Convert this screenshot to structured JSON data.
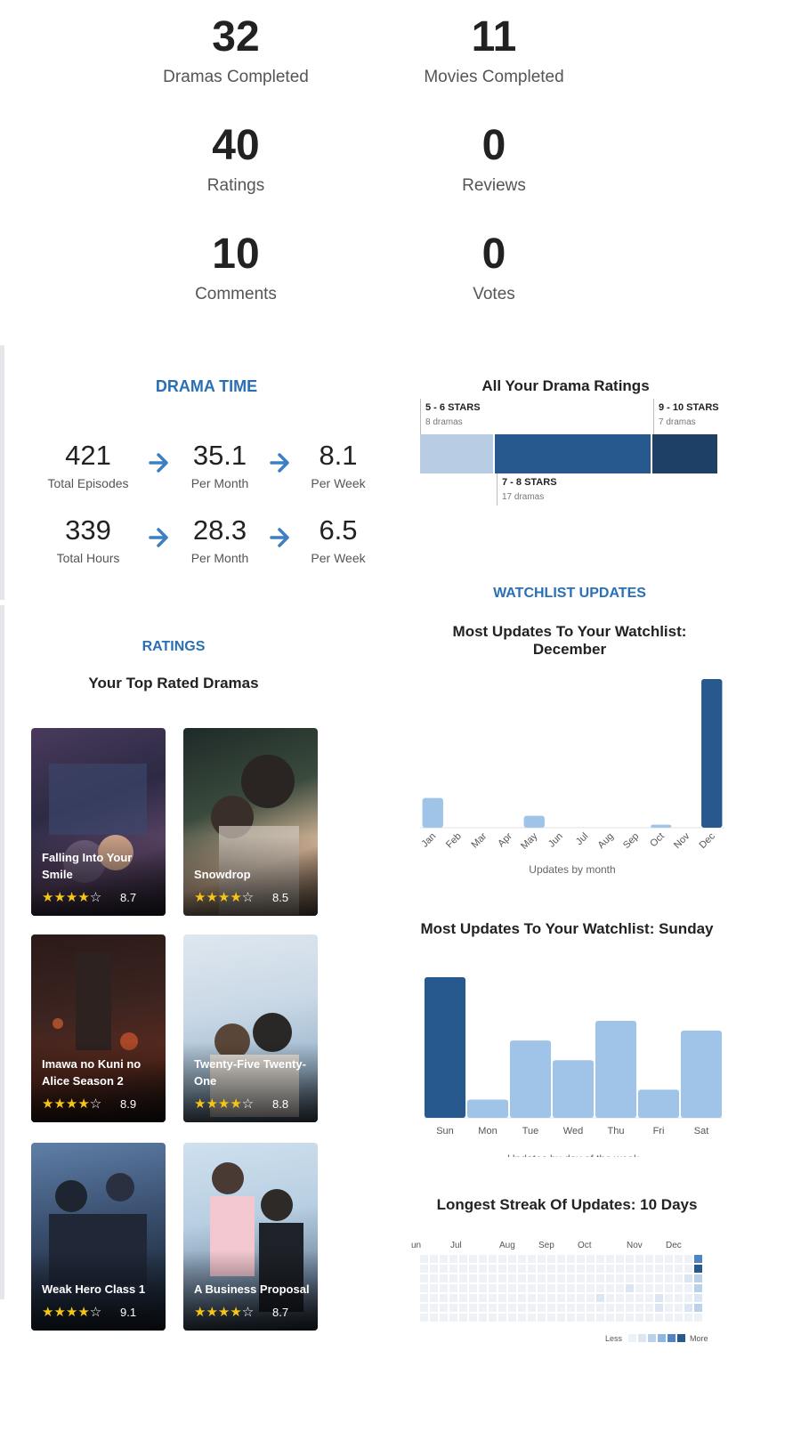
{
  "stats": [
    {
      "value": "32",
      "label": "Dramas Completed"
    },
    {
      "value": "11",
      "label": "Movies Completed"
    },
    {
      "value": "40",
      "label": "Ratings"
    },
    {
      "value": "0",
      "label": "Reviews"
    },
    {
      "value": "10",
      "label": "Comments"
    },
    {
      "value": "0",
      "label": "Votes"
    }
  ],
  "drama_time": {
    "title": "DRAMA TIME",
    "rows": [
      [
        {
          "value": "421",
          "label": "Total Episodes"
        },
        {
          "value": "35.1",
          "label": "Per Month"
        },
        {
          "value": "8.1",
          "label": "Per Week"
        }
      ],
      [
        {
          "value": "339",
          "label": "Total Hours"
        },
        {
          "value": "28.3",
          "label": "Per Month"
        },
        {
          "value": "6.5",
          "label": "Per Week"
        }
      ]
    ],
    "arrow_icon": "arrow-right-icon",
    "arrow_color": "#3d7fc1"
  },
  "rating_distribution": {
    "title": "All Your Drama Ratings",
    "segments": [
      {
        "label": "5 - 6 STARS",
        "count": "8 dramas",
        "value": 8,
        "color": "#b8cce4"
      },
      {
        "label": "7 - 8 STARS",
        "count": "17 dramas",
        "value": 17,
        "color": "#27598f"
      },
      {
        "label": "9 - 10 STARS",
        "count": "7 dramas",
        "value": 7,
        "color": "#1e3f66"
      }
    ]
  },
  "ratings": {
    "title": "RATINGS",
    "subtitle": "Your Top Rated Dramas",
    "dramas": [
      {
        "title": "Falling Into Your Smile",
        "score": "8.7",
        "stars": 4.5
      },
      {
        "title": "Snowdrop",
        "score": "8.5",
        "stars": 4.5
      },
      {
        "title": "Imawa no Kuni no Alice Season 2",
        "score": "8.9",
        "stars": 4.5
      },
      {
        "title": "Twenty-Five Twenty-One",
        "score": "8.8",
        "stars": 4.5
      },
      {
        "title": "Weak Hero Class 1",
        "score": "9.1",
        "stars": 4.5
      },
      {
        "title": "A Business Proposal",
        "score": "8.7",
        "stars": 4.5
      }
    ]
  },
  "watchlist": {
    "title": "WATCHLIST UPDATES"
  },
  "chart_data": [
    {
      "type": "bar",
      "title": "Most Updates To Your Watchlist: December",
      "xlabel": "Updates by month",
      "categories": [
        "Jan",
        "Feb",
        "Mar",
        "Apr",
        "May",
        "Jun",
        "Jul",
        "Aug",
        "Sep",
        "Oct",
        "Nov",
        "Dec"
      ],
      "values": [
        20,
        0,
        0,
        0,
        8,
        0,
        0,
        0,
        0,
        2,
        0,
        100
      ],
      "highlight_index": 11,
      "colors": {
        "normal": "#a0c4e8",
        "highlight": "#27598f"
      }
    },
    {
      "type": "bar",
      "title": "Most Updates To Your Watchlist: Sunday",
      "xlabel": "Updates by day of the week",
      "categories": [
        "Sun",
        "Mon",
        "Tue",
        "Wed",
        "Thu",
        "Fri",
        "Sat"
      ],
      "values": [
        100,
        13,
        55,
        41,
        69,
        20,
        62
      ],
      "highlight_index": 0,
      "colors": {
        "normal": "#a0c4e8",
        "highlight": "#27598f"
      }
    },
    {
      "type": "heatmap",
      "title": "Longest Streak Of Updates: 10 Days",
      "month_labels": [
        "un",
        "Jul",
        "Aug",
        "Sep",
        "Oct",
        "Nov",
        "Dec"
      ],
      "legend_less": "Less",
      "legend_more": "More",
      "scale_colors": [
        "#eef1f6",
        "#dbe6f2",
        "#b9d1ea",
        "#8fb6e0",
        "#4f84c4",
        "#27598f"
      ],
      "rows": 7,
      "cols": 29,
      "active_cells": [
        {
          "col": 28,
          "row": 0,
          "level": 4
        },
        {
          "col": 28,
          "row": 1,
          "level": 5
        },
        {
          "col": 28,
          "row": 2,
          "level": 2
        },
        {
          "col": 28,
          "row": 3,
          "level": 2
        },
        {
          "col": 28,
          "row": 4,
          "level": 1
        },
        {
          "col": 28,
          "row": 5,
          "level": 2
        },
        {
          "col": 27,
          "row": 2,
          "level": 1
        },
        {
          "col": 27,
          "row": 5,
          "level": 1
        },
        {
          "col": 24,
          "row": 4,
          "level": 1
        },
        {
          "col": 24,
          "row": 5,
          "level": 1
        },
        {
          "col": 18,
          "row": 4,
          "level": 1
        },
        {
          "col": 21,
          "row": 3,
          "level": 1
        }
      ]
    }
  ]
}
